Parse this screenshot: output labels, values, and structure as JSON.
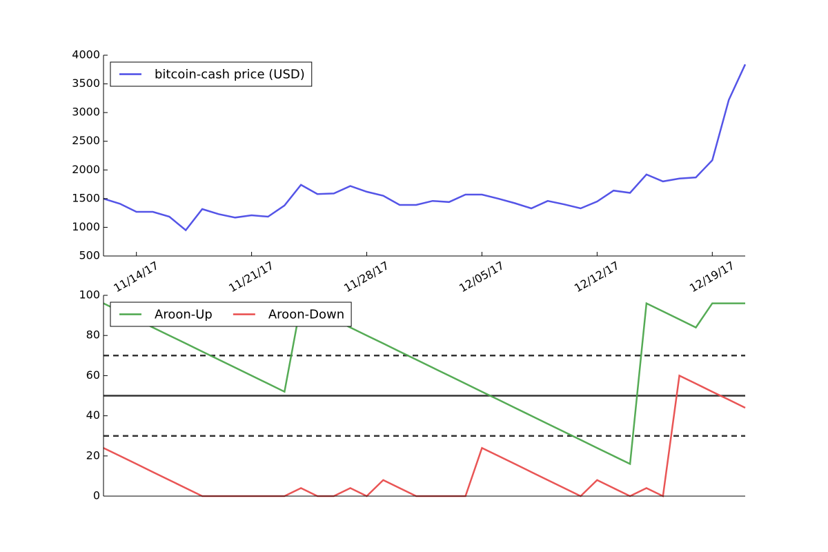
{
  "chart_data": [
    {
      "type": "line",
      "x": [
        "11/12/17",
        "11/13/17",
        "11/14/17",
        "11/15/17",
        "11/16/17",
        "11/17/17",
        "11/18/17",
        "11/19/17",
        "11/20/17",
        "11/21/17",
        "11/22/17",
        "11/23/17",
        "11/24/17",
        "11/25/17",
        "11/26/17",
        "11/27/17",
        "11/28/17",
        "11/29/17",
        "11/30/17",
        "12/01/17",
        "12/02/17",
        "12/03/17",
        "12/04/17",
        "12/05/17",
        "12/06/17",
        "12/07/17",
        "12/08/17",
        "12/09/17",
        "12/10/17",
        "12/11/17",
        "12/12/17",
        "12/13/17",
        "12/14/17",
        "12/15/17",
        "12/16/17",
        "12/17/17",
        "12/18/17",
        "12/19/17",
        "12/20/17",
        "12/21/17"
      ],
      "series": [
        {
          "name": "bitcoin-cash price (USD)",
          "color": "#4b4be6",
          "values": [
            1500,
            1410,
            1270,
            1270,
            1185,
            950,
            1318,
            1230,
            1170,
            1210,
            1185,
            1380,
            1740,
            1580,
            1590,
            1720,
            1620,
            1550,
            1390,
            1390,
            1460,
            1440,
            1570,
            1570,
            1500,
            1420,
            1330,
            1460,
            1400,
            1330,
            1450,
            1640,
            1600,
            1920,
            1800,
            1850,
            1870,
            2170,
            3220,
            3840
          ]
        }
      ],
      "xlim": [
        "11/12/17",
        "12/21/17"
      ],
      "xticks": [
        "11/14/17",
        "11/21/17",
        "11/28/17",
        "12/05/17",
        "12/12/17",
        "12/19/17"
      ],
      "ylim": [
        500,
        4000
      ],
      "yticks": [
        500,
        1000,
        1500,
        2000,
        2500,
        3000,
        3500,
        4000
      ],
      "legend": "upper left"
    },
    {
      "type": "line",
      "x": [
        "11/12/17",
        "11/13/17",
        "11/14/17",
        "11/15/17",
        "11/16/17",
        "11/17/17",
        "11/18/17",
        "11/19/17",
        "11/20/17",
        "11/21/17",
        "11/22/17",
        "11/23/17",
        "11/24/17",
        "11/25/17",
        "11/26/17",
        "11/27/17",
        "11/28/17",
        "11/29/17",
        "11/30/17",
        "12/01/17",
        "12/02/17",
        "12/03/17",
        "12/04/17",
        "12/05/17",
        "12/06/17",
        "12/07/17",
        "12/08/17",
        "12/09/17",
        "12/10/17",
        "12/11/17",
        "12/12/17",
        "12/13/17",
        "12/14/17",
        "12/15/17",
        "12/16/17",
        "12/17/17",
        "12/18/17",
        "12/19/17",
        "12/20/17",
        "12/21/17"
      ],
      "series": [
        {
          "name": "Aroon-Up",
          "color": "#4ca64c",
          "values": [
            96,
            92,
            88,
            84,
            80,
            76,
            72,
            68,
            64,
            60,
            56,
            52,
            96,
            92,
            88,
            84,
            80,
            76,
            72,
            68,
            64,
            60,
            56,
            52,
            48,
            44,
            40,
            36,
            32,
            28,
            24,
            20,
            16,
            96,
            92,
            88,
            84,
            96,
            96,
            96
          ]
        },
        {
          "name": "Aroon-Down",
          "color": "#e84c4c",
          "values": [
            24,
            20,
            16,
            12,
            8,
            4,
            0,
            0,
            0,
            0,
            0,
            0,
            4,
            0,
            0,
            4,
            0,
            8,
            4,
            0,
            0,
            0,
            0,
            24,
            20,
            16,
            12,
            8,
            4,
            0,
            8,
            4,
            0,
            4,
            0,
            60,
            56,
            52,
            48,
            44
          ]
        }
      ],
      "hlines": [
        {
          "value": 30,
          "style": "dashed"
        },
        {
          "value": 50,
          "style": "solid"
        },
        {
          "value": 70,
          "style": "dashed"
        }
      ],
      "xlim": [
        "11/12/17",
        "12/21/17"
      ],
      "ylim": [
        0,
        100
      ],
      "yticks": [
        0,
        20,
        40,
        60,
        80,
        100
      ],
      "legend": "upper left"
    }
  ]
}
